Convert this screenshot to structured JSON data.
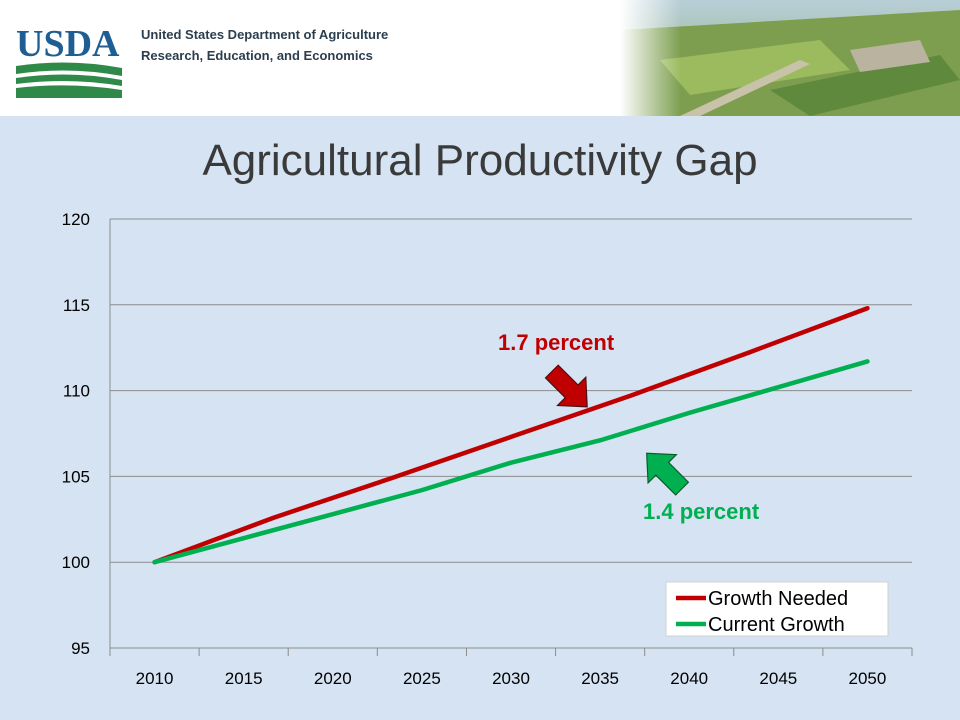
{
  "header": {
    "logo_text": "USDA",
    "dept_line1": "United States Department of Agriculture",
    "dept_line2": "Research, Education, and Economics"
  },
  "chart_data": {
    "type": "line",
    "title": "Agricultural Productivity Gap",
    "x": [
      2010,
      2015,
      2020,
      2025,
      2030,
      2035,
      2040,
      2045,
      2050
    ],
    "xlabel": "",
    "ylabel": "",
    "ylim": [
      95,
      120
    ],
    "yticks": [
      95,
      100,
      105,
      110,
      115,
      120
    ],
    "grid": "horizontal",
    "legend_position": "bottom-right",
    "series": [
      {
        "name": "Growth Needed",
        "color": "#c00000",
        "values": [
          100.0,
          102.6,
          104.9,
          107.3,
          109.7,
          112.2,
          114.8
        ],
        "x": [
          2010,
          2016.7,
          2023.3,
          2030,
          2036.7,
          2043.3,
          2050
        ]
      },
      {
        "name": "Current Growth",
        "color": "#00b050",
        "values": [
          100.0,
          101.4,
          102.8,
          104.2,
          105.8,
          107.1,
          108.7,
          110.2,
          111.7
        ],
        "x": [
          2010,
          2015,
          2020,
          2025,
          2030,
          2035,
          2040,
          2045,
          2050
        ]
      }
    ],
    "annotations": [
      {
        "text": "1.7 percent",
        "color": "#c00000",
        "target_x": 2034.5,
        "target_y": 108.7
      },
      {
        "text": "1.4 percent",
        "color": "#00b050",
        "target_x": 2037.5,
        "target_y": 106.7
      }
    ]
  }
}
